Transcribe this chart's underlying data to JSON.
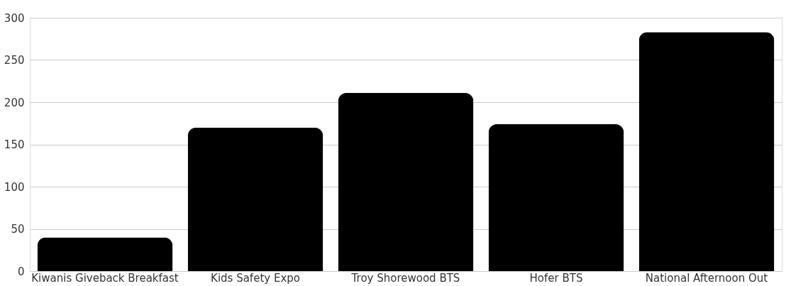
{
  "chart_data": {
    "type": "bar",
    "categories": [
      "Kiwanis Giveback Breakfast",
      "Kids Safety Expo",
      "Troy Shorewood BTS",
      "Hofer BTS",
      "National Afternoon Out"
    ],
    "values": [
      40,
      170,
      211,
      174,
      283
    ],
    "color": "#000000",
    "ylim": [
      0,
      300
    ],
    "yticks": [
      0,
      50,
      100,
      150,
      200,
      250,
      300
    ],
    "grid": "y"
  }
}
